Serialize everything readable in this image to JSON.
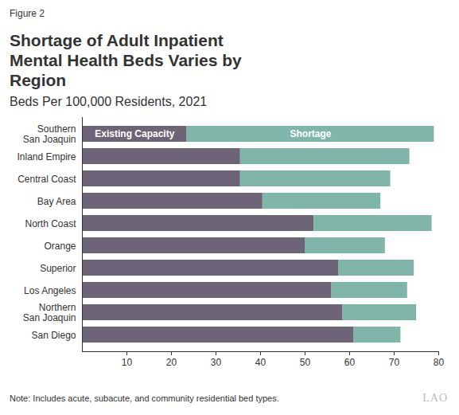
{
  "chart_data": {
    "type": "bar",
    "orientation": "horizontal",
    "stacked": true,
    "figure_label": "Figure 2",
    "title": "Shortage of Adult Inpatient Mental Health Beds Varies by Region",
    "subtitle": "Beds Per 100,000 Residents, 2021",
    "note": "Note: Includes acute, subacute, and community residential bed types.",
    "logo": "LAO",
    "categories": [
      "Southern San Joaquin",
      "Inland Empire",
      "Central Coast",
      "Bay Area",
      "North Coast",
      "Orange",
      "Superior",
      "Los Angeles",
      "Northern San Joaquin",
      "San Diego"
    ],
    "series": [
      {
        "name": "Existing Capacity",
        "color": "#6e6477",
        "values": [
          23.5,
          35.5,
          35.5,
          40.5,
          52,
          50,
          57.5,
          56,
          58.5,
          61
        ]
      },
      {
        "name": "Shortage",
        "color": "#80b6a9",
        "values": [
          55.5,
          38,
          33.7,
          26.5,
          26.5,
          18,
          17,
          17,
          16.5,
          10.5
        ]
      }
    ],
    "xlim": [
      0,
      80
    ],
    "xticks": [
      10,
      20,
      30,
      40,
      50,
      60,
      70,
      80
    ],
    "grid": false
  }
}
